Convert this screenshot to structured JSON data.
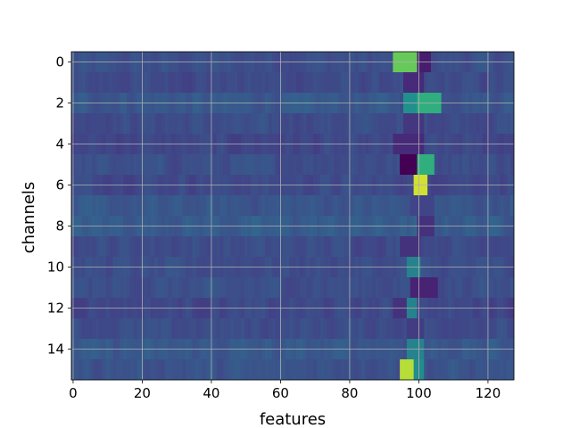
{
  "chart_data": {
    "type": "heatmap",
    "colormap": "viridis",
    "xlabel": "features",
    "ylabel": "channels",
    "xlim": [
      -0.5,
      127.5
    ],
    "ylim": [
      15.5,
      -0.5
    ],
    "y_inverted": true,
    "n_rows": 16,
    "n_cols": 128,
    "vmin": 0,
    "vmax": 1,
    "xticks": [
      0,
      20,
      40,
      60,
      80,
      100,
      120
    ],
    "xtick_labels": [
      "0",
      "20",
      "40",
      "60",
      "80",
      "100",
      "120"
    ],
    "yticks": [
      0,
      2,
      4,
      6,
      8,
      10,
      12,
      14
    ],
    "ytick_labels": [
      "0",
      "2",
      "4",
      "6",
      "8",
      "10",
      "12",
      "14"
    ],
    "grid": true,
    "base_level": 0.3,
    "row_offsets": [
      0.0,
      -0.02,
      0.04,
      -0.01,
      -0.04,
      0.0,
      -0.02,
      0.03,
      0.06,
      -0.01,
      -0.01,
      0.0,
      -0.03,
      -0.01,
      0.04,
      0.02
    ],
    "hotspots": [
      {
        "row": 0,
        "cols": [
          93,
          99
        ],
        "value": 0.82
      },
      {
        "row": 0,
        "cols": [
          100,
          103
        ],
        "value": 0.1
      },
      {
        "row": 1,
        "cols": [
          96,
          101
        ],
        "value": 0.15
      },
      {
        "row": 2,
        "cols": [
          96,
          100
        ],
        "value": 0.62
      },
      {
        "row": 2,
        "cols": [
          100,
          106
        ],
        "value": 0.72
      },
      {
        "row": 3,
        "cols": [
          96,
          101
        ],
        "value": 0.2
      },
      {
        "row": 4,
        "cols": [
          93,
          101
        ],
        "value": 0.15
      },
      {
        "row": 5,
        "cols": [
          95,
          99
        ],
        "value": 0.0
      },
      {
        "row": 5,
        "cols": [
          100,
          104
        ],
        "value": 0.72
      },
      {
        "row": 6,
        "cols": [
          99,
          102
        ],
        "value": 0.95
      },
      {
        "row": 7,
        "cols": [
          98,
          104
        ],
        "value": 0.25
      },
      {
        "row": 8,
        "cols": [
          100,
          104
        ],
        "value": 0.18
      },
      {
        "row": 9,
        "cols": [
          95,
          100
        ],
        "value": 0.18
      },
      {
        "row": 10,
        "cols": [
          97,
          100
        ],
        "value": 0.55
      },
      {
        "row": 11,
        "cols": [
          98,
          105
        ],
        "value": 0.12
      },
      {
        "row": 12,
        "cols": [
          96,
          99
        ],
        "value": 0.55
      },
      {
        "row": 12,
        "cols": [
          93,
          96
        ],
        "value": 0.18
      },
      {
        "row": 13,
        "cols": [
          97,
          101
        ],
        "value": 0.22
      },
      {
        "row": 14,
        "cols": [
          97,
          101
        ],
        "value": 0.55
      },
      {
        "row": 15,
        "cols": [
          95,
          99
        ],
        "value": 0.92
      },
      {
        "row": 15,
        "cols": [
          99,
          101
        ],
        "value": 0.6
      }
    ]
  }
}
